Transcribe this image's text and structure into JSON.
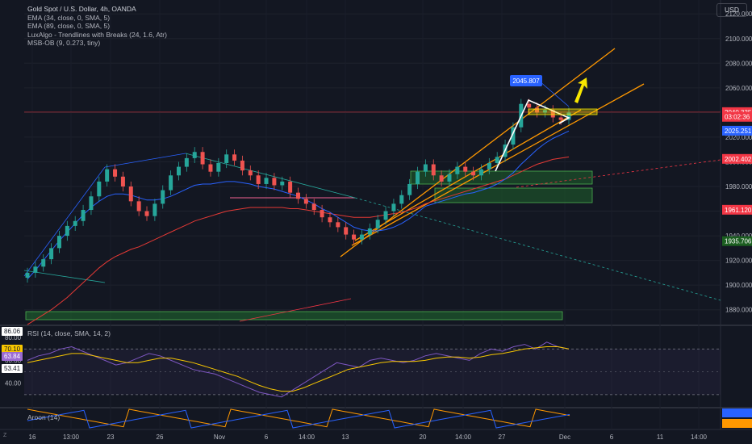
{
  "toolbar": {
    "currency_label": "USD",
    "z_label": "Z"
  },
  "legend": {
    "title": "Gold Spot / U.S. Dollar, 4h, OANDA",
    "lines": [
      "EMA (34, close, 0, SMA, 5)",
      "EMA (89, close, 0, SMA, 5)",
      "LuxAlgo - Trendlines with Breaks (24, 1.6, Atr)",
      "MSB-OB (9, 0.273, tiny)"
    ]
  },
  "rsi_label": "RSI (14, close, SMA, 14, 2)",
  "aroon_label": "Aroon (14)",
  "left_badges": [
    {
      "text": "86.06",
      "color": "#ffffff",
      "bg": "#ffffff",
      "fg": "#131722"
    },
    {
      "text": "70.10",
      "color": "#f7c600",
      "bg": "#f7c600",
      "fg": "#131722"
    },
    {
      "text": "63.84",
      "color": "#9c6bd3",
      "bg": "#9c6bd3",
      "fg": "#ffffff"
    },
    {
      "text": "53.41",
      "color": "#ffffff",
      "bg": "#ffffff",
      "fg": "#131722"
    }
  ],
  "chart_data": {
    "type": "candlestick",
    "title": "Gold Spot / U.S. Dollar, 4h, OANDA",
    "price_axis": {
      "ticks": [
        "2120.000",
        "2100.000",
        "2080.000",
        "2060.000",
        "2040.000",
        "2020.000",
        "2000.000",
        "1980.000",
        "1960.000",
        "1940.000",
        "1920.000",
        "1900.000",
        "1880.000"
      ],
      "ylim": [
        1870,
        2128
      ]
    },
    "time_axis": {
      "ticks": [
        "16",
        "13:00",
        "23",
        "26",
        "Nov",
        "6",
        "14:00",
        "13",
        "20",
        "14:00",
        "27",
        "Dec",
        "6",
        "11",
        "14:00"
      ]
    },
    "price_labels": [
      {
        "text": "2040.335",
        "value": 2040.335,
        "color": "#f23645"
      },
      {
        "text": "03:02:36",
        "value": 2036.5,
        "color": "#f23645"
      },
      {
        "text": "2025.251",
        "value": 2025.251,
        "color": "#2962ff"
      },
      {
        "text": "2002.402",
        "value": 2002.402,
        "color": "#f23645"
      },
      {
        "text": "1961.120",
        "value": 1961.12,
        "color": "#f23645"
      },
      {
        "text": "1935.706",
        "value": 1935.706,
        "color": "#1b5e20"
      }
    ],
    "callout": {
      "text": "2045.807"
    },
    "candles": [
      1910,
      1915,
      1921,
      1930,
      1940,
      1948,
      1952,
      1961,
      1972,
      1984,
      1994,
      1988,
      1980,
      1968,
      1960,
      1956,
      1966,
      1977,
      1989,
      1996,
      2003,
      2008,
      1998,
      1992,
      1999,
      2006,
      2001,
      1993,
      1989,
      1982,
      1987,
      1981,
      1984,
      1975,
      1970,
      1966,
      1961,
      1955,
      1951,
      1947,
      1941,
      1937,
      1941,
      1946,
      1953,
      1960,
      1966,
      1973,
      1982,
      1992,
      1998,
      1989,
      1984,
      1990,
      1996,
      1992,
      1989,
      1994,
      1999,
      2004,
      2014,
      2028,
      2047,
      2044,
      2040,
      2042,
      2036,
      2034,
      2040
    ],
    "ema34": [
      1905,
      1912,
      1920,
      1928,
      1936,
      1943,
      1950,
      1957,
      1963,
      1968,
      1972,
      1974,
      1974,
      1973,
      1971,
      1969,
      1969,
      1970,
      1972,
      1975,
      1978,
      1981,
      1982,
      1982,
      1983,
      1984,
      1984,
      1983,
      1982,
      1980,
      1979,
      1978,
      1976,
      1974,
      1972,
      1969,
      1966,
      1962,
      1959,
      1955,
      1951,
      1947,
      1945,
      1944,
      1944,
      1945,
      1947,
      1950,
      1954,
      1959,
      1964,
      1966,
      1968,
      1970,
      1972,
      1974,
      1975,
      1977,
      1979,
      1982,
      1986,
      1991,
      1998,
      2004,
      2010,
      2015,
      2019,
      2022,
      2025
    ],
    "ema89": [
      1868,
      1872,
      1876,
      1880,
      1885,
      1890,
      1896,
      1902,
      1908,
      1914,
      1919,
      1923,
      1926,
      1929,
      1931,
      1934,
      1937,
      1940,
      1943,
      1946,
      1949,
      1952,
      1954,
      1956,
      1958,
      1960,
      1961,
      1962,
      1963,
      1963,
      1963,
      1963,
      1963,
      1962,
      1962,
      1961,
      1960,
      1959,
      1958,
      1957,
      1956,
      1955,
      1955,
      1955,
      1956,
      1957,
      1958,
      1959,
      1961,
      1963,
      1966,
      1968,
      1970,
      1972,
      1974,
      1976,
      1978,
      1980,
      1982,
      1984,
      1986,
      1989,
      1992,
      1995,
      1998,
      2000,
      2002,
      2003,
      2004
    ],
    "rsi": [
      60,
      64,
      66,
      70,
      72,
      68,
      64,
      60,
      56,
      58,
      62,
      66,
      64,
      60,
      56,
      52,
      50,
      48,
      44,
      40,
      36,
      32,
      30,
      28,
      34,
      40,
      46,
      52,
      58,
      56,
      54,
      60,
      62,
      60,
      58,
      60,
      64,
      66,
      64,
      62,
      60,
      66,
      70,
      68,
      72,
      74,
      70,
      76,
      72,
      70
    ],
    "rsi_ma": [
      58,
      60,
      62,
      64,
      66,
      66,
      64,
      62,
      60,
      58,
      58,
      60,
      62,
      62,
      60,
      58,
      55,
      52,
      49,
      46,
      42,
      38,
      35,
      33,
      33,
      36,
      40,
      44,
      48,
      52,
      54,
      56,
      58,
      59,
      59,
      59,
      60,
      62,
      63,
      63,
      62,
      63,
      65,
      66,
      68,
      70,
      71,
      72,
      72,
      70
    ],
    "aroon_cycle": 18
  }
}
